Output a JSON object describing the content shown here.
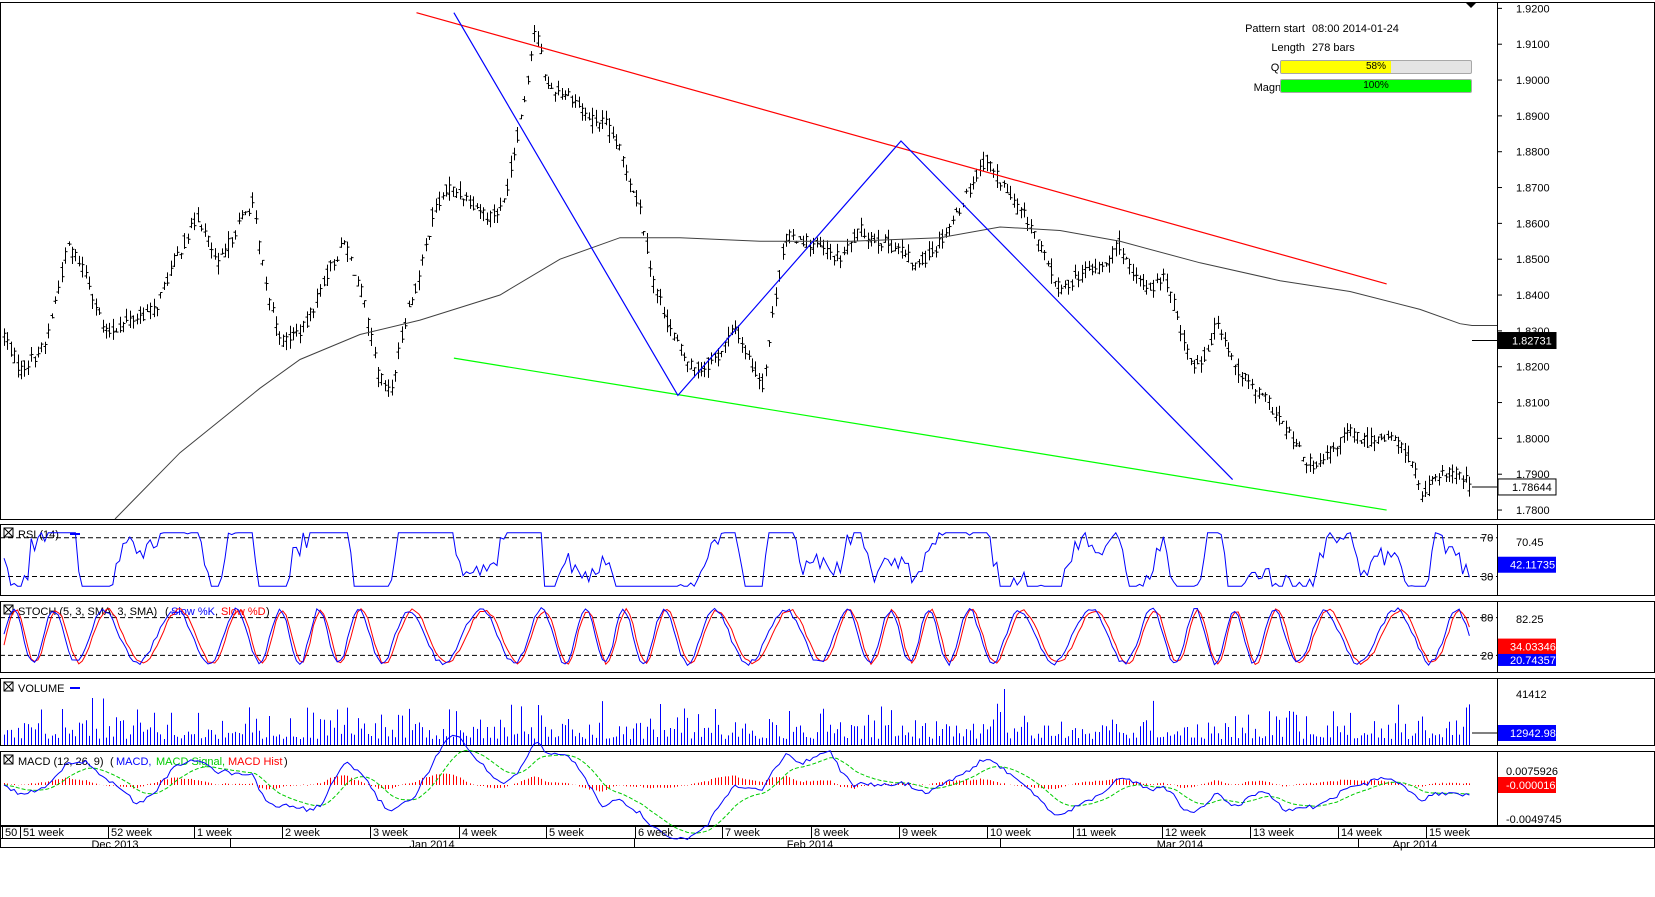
{
  "pattern_info": {
    "start_label": "Pattern start",
    "start_value": "08:00 2014-01-24",
    "length_label": "Length",
    "length_value": "278 bars",
    "quality_label": "Quality",
    "quality_text": "58%",
    "quality_fraction": 0.58,
    "quality_color": "#ffff00",
    "magnitude_label": "Magnitude",
    "magnitude_text": "100%",
    "magnitude_fraction": 1.0,
    "magnitude_color": "#00ff00"
  },
  "chart_data": [
    {
      "type": "ohlc",
      "panel": "price",
      "y_ticks": [
        "1.9200",
        "1.9100",
        "1.9000",
        "1.8900",
        "1.8800",
        "1.8700",
        "1.8600",
        "1.8500",
        "1.8400",
        "1.8300",
        "1.8200",
        "1.8100",
        "1.8000",
        "1.7900",
        "1.7800"
      ],
      "ylim": [
        1.7775,
        1.9215
      ],
      "current_price_label": "1.78644",
      "current_price": 1.78644,
      "ma_label": "1.82731",
      "ma_value": 1.82731,
      "pattern_lines": {
        "resistance": {
          "color": "#ff0000",
          "from": {
            "week_offset": 5.5,
            "price": 1.9188
          },
          "to": {
            "week_offset": 16.53,
            "price": 1.8431
          }
        },
        "support": {
          "color": "#00ff00",
          "from": {
            "week_offset": 5.92,
            "price": 1.8224
          },
          "to": {
            "week_offset": 16.53,
            "price": 1.78
          }
        },
        "zigzag": {
          "color": "#0000ff",
          "points": [
            {
              "week_offset": 5.92,
              "price": 1.9188
            },
            {
              "week_offset": 8.47,
              "price": 1.812
            },
            {
              "week_offset": 11.0,
              "price": 1.883
            },
            {
              "week_offset": 14.78,
              "price": 1.7885
            }
          ]
        }
      }
    },
    {
      "type": "line",
      "panel": "rsi",
      "label": "RSI (14)",
      "levels": [
        "70",
        "30"
      ],
      "y_ticks": [
        "70.45"
      ],
      "current_value": "42.11735"
    },
    {
      "type": "line",
      "panel": "stoch",
      "label": "STOCH (5, 3, SMA, 3, SMA)",
      "series": [
        {
          "name": "Slow %K",
          "color": "#0000ff"
        },
        {
          "name": "Slow %D",
          "color": "#ff0000"
        }
      ],
      "levels": [
        "80",
        "20"
      ],
      "y_ticks": [
        "82.25"
      ],
      "current_values": [
        "34.03346",
        "20.74357"
      ]
    },
    {
      "type": "bar",
      "panel": "volume",
      "label": "VOLUME",
      "y_ticks": [
        "41412"
      ],
      "current_value": "12942.98"
    },
    {
      "type": "line",
      "panel": "macd",
      "label": "MACD (12, 26, 9)",
      "series": [
        {
          "name": "MACD",
          "color": "#0000ff"
        },
        {
          "name": "MACD Signal",
          "color": "#00cc00"
        },
        {
          "name": "MACD Hist",
          "color": "#ff0000"
        }
      ],
      "y_ticks": [
        "0.0075926",
        "-0.0049745"
      ],
      "current_value": "-0.0000165"
    }
  ],
  "x_axis": {
    "week_labels": [
      "50",
      "51 week",
      "52 week",
      "1 week",
      "2 week",
      "3 week",
      "4 week",
      "5 week",
      "6 week",
      "7 week",
      "8 week",
      "9 week",
      "10 week",
      "11 week",
      "12 week",
      "13 week",
      "14 week",
      "15 week"
    ],
    "month_labels": [
      "Dec 2013",
      "Jan 2014",
      "Feb 2014",
      "Mar 2014",
      "Apr 2014"
    ]
  },
  "colors": {
    "bars": "#000000",
    "ma": "#404040",
    "indicator_main": "#0000ff",
    "indicator_signal": "#ff0000",
    "price_label_bg": "#000000",
    "value_label_bg": "#0000ff",
    "value_label_red": "#ff0000"
  }
}
